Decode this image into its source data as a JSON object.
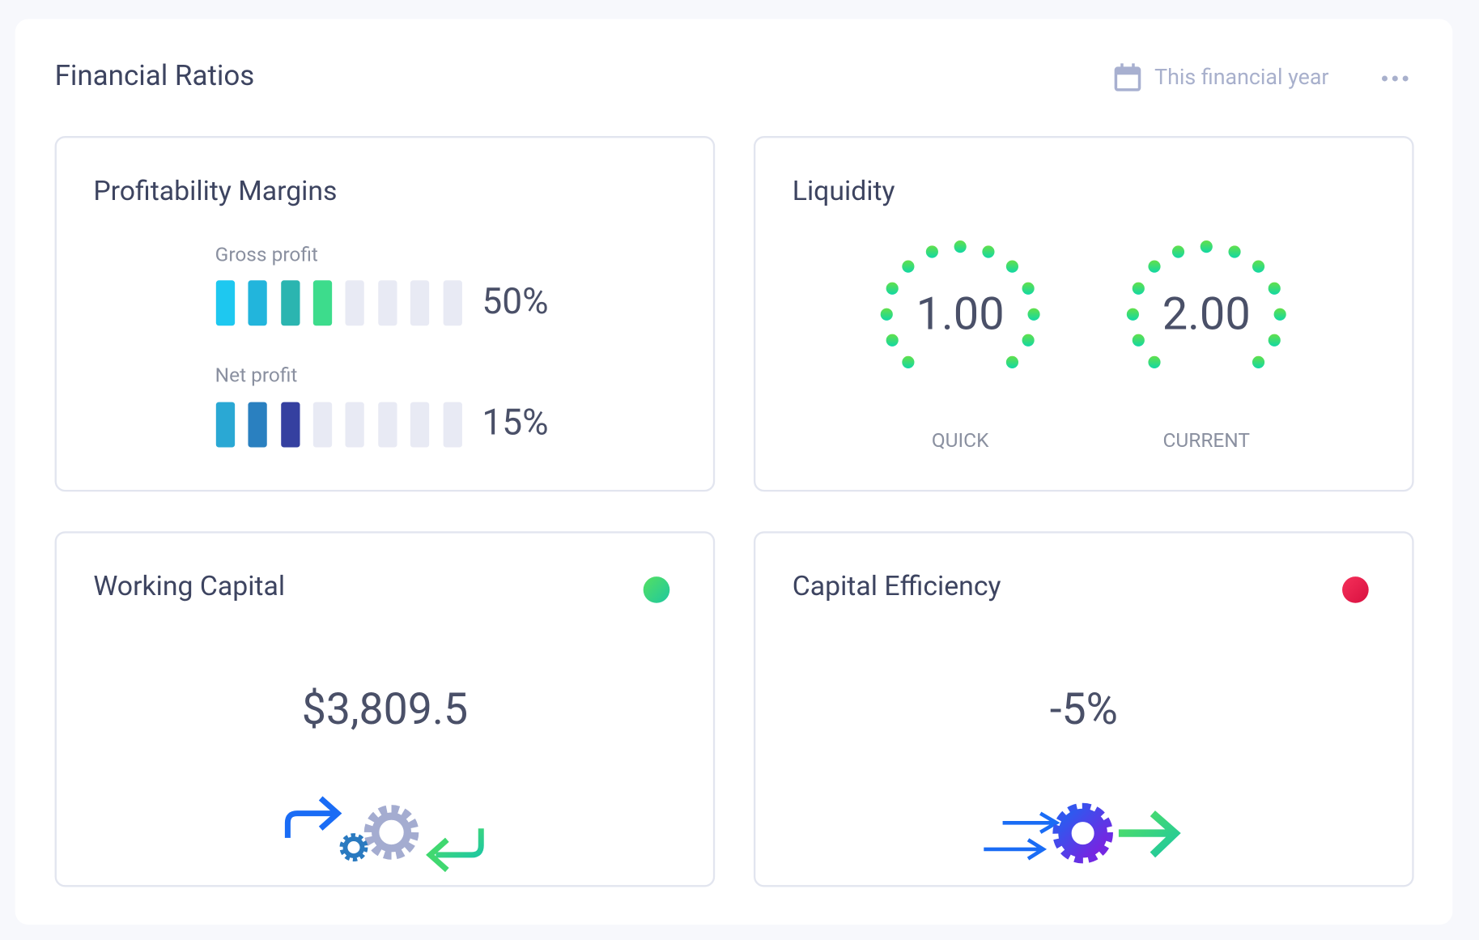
{
  "header": {
    "title": "Financial Ratios",
    "period": "This financial year"
  },
  "profitability": {
    "title": "Profitability Margins",
    "items": [
      {
        "label": "Gross profit",
        "value": "50%"
      },
      {
        "label": "Net profit",
        "value": "15%"
      }
    ]
  },
  "liquidity": {
    "title": "Liquidity",
    "gauges": [
      {
        "value": "1.00",
        "label": "QUICK"
      },
      {
        "value": "2.00",
        "label": "CURRENT"
      }
    ]
  },
  "working_capital": {
    "title": "Working Capital",
    "value": "$3,809.5"
  },
  "capital_efficiency": {
    "title": "Capital Efficiency",
    "value": "-5%"
  }
}
